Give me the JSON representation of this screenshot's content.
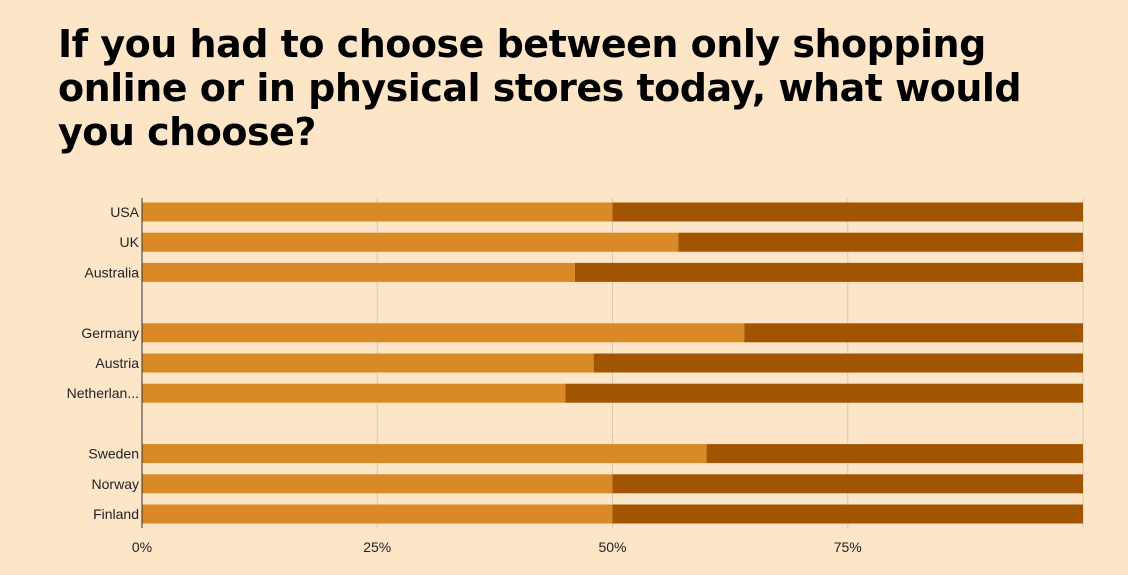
{
  "chart_data": {
    "type": "bar",
    "orientation": "horizontal",
    "stacked": true,
    "title": "If you had to choose between only shopping online or in physical stores today, what would you choose?",
    "xlabel": "",
    "ylabel": "",
    "xlim": [
      0,
      100
    ],
    "x_ticks": [
      "0%",
      "25%",
      "50%",
      "75%"
    ],
    "x_tick_values": [
      0,
      25,
      50,
      75
    ],
    "grid": true,
    "legend": "none",
    "groups": [
      [
        "USA",
        "UK",
        "Australia"
      ],
      [
        "Germany",
        "Austria",
        "Netherlan..."
      ],
      [
        "Sweden",
        "Norway",
        "Finland"
      ]
    ],
    "categories": [
      "USA",
      "UK",
      "Australia",
      "Germany",
      "Austria",
      "Netherlan...",
      "Sweden",
      "Norway",
      "Finland"
    ],
    "series": [
      {
        "values": [
          50,
          57,
          46,
          64,
          48,
          45,
          60,
          50,
          50
        ],
        "color": "#d98926"
      },
      {
        "values": [
          50,
          43,
          54,
          36,
          52,
          55,
          40,
          50,
          50
        ],
        "color": "#a15500"
      }
    ]
  },
  "colors": {
    "background": "#fde5c8",
    "gridline": "#d9c9b4",
    "axis": "#333333"
  }
}
